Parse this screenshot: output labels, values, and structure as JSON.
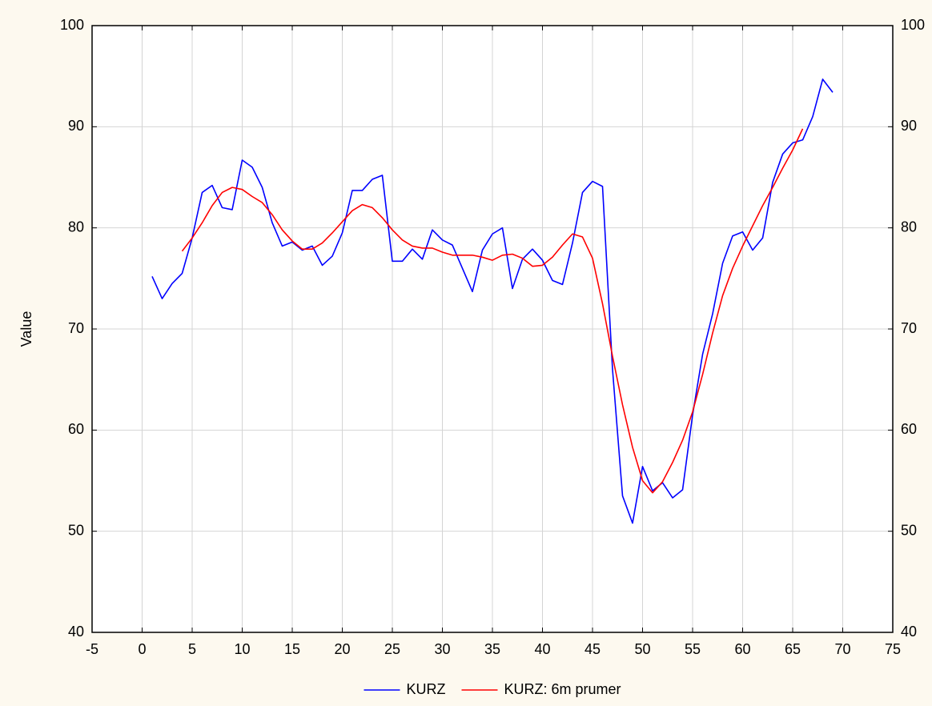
{
  "chart_data": {
    "type": "line",
    "ylabel": "Value",
    "x": [
      1,
      2,
      3,
      4,
      5,
      6,
      7,
      8,
      9,
      10,
      11,
      12,
      13,
      14,
      15,
      16,
      17,
      18,
      19,
      20,
      21,
      22,
      23,
      24,
      25,
      26,
      27,
      28,
      29,
      30,
      31,
      32,
      33,
      34,
      35,
      36,
      37,
      38,
      39,
      40,
      41,
      42,
      43,
      44,
      45,
      46,
      47,
      48,
      49,
      50,
      51,
      52,
      53,
      54,
      55,
      56,
      57,
      58,
      59,
      60,
      61,
      62,
      63,
      64,
      65,
      66,
      67,
      68,
      69
    ],
    "series": [
      {
        "name": "KURZ",
        "color": "#0000ff",
        "values": [
          75.2,
          73.0,
          74.5,
          75.5,
          79.0,
          83.5,
          84.2,
          82.0,
          81.8,
          86.7,
          86.0,
          84.0,
          80.5,
          78.2,
          78.6,
          77.8,
          78.2,
          76.3,
          77.2,
          79.5,
          83.7,
          83.7,
          84.8,
          85.2,
          76.7,
          76.7,
          77.9,
          76.9,
          79.8,
          78.8,
          78.3,
          76.0,
          73.7,
          77.8,
          79.4,
          80.0,
          74.0,
          76.9,
          77.9,
          76.8,
          74.8,
          74.4,
          78.5,
          83.5,
          84.6,
          84.1,
          66.0,
          53.5,
          50.8,
          56.4,
          54.0,
          54.8,
          53.3,
          54.1,
          61.5,
          67.5,
          71.5,
          76.5,
          79.2,
          79.6,
          77.8,
          79.0,
          84.5,
          87.3,
          88.4,
          88.7,
          91.0,
          94.7,
          93.4
        ]
      },
      {
        "name": "KURZ: 6m prumer",
        "color": "#ff0000",
        "values": [
          null,
          null,
          null,
          77.7,
          79.0,
          80.5,
          82.2,
          83.5,
          84.0,
          83.8,
          83.1,
          82.5,
          81.3,
          79.8,
          78.7,
          77.9,
          77.9,
          78.5,
          79.5,
          80.6,
          81.7,
          82.3,
          82.0,
          81.0,
          79.8,
          78.8,
          78.2,
          78.0,
          78.0,
          77.6,
          77.3,
          77.3,
          77.3,
          77.1,
          76.8,
          77.3,
          77.4,
          77.0,
          76.2,
          76.3,
          77.1,
          78.3,
          79.4,
          79.1,
          77.0,
          72.5,
          67.3,
          62.5,
          58.3,
          55.0,
          53.8,
          54.9,
          56.8,
          59.0,
          61.8,
          65.5,
          69.6,
          73.3,
          76.0,
          78.2,
          80.2,
          82.2,
          84.0,
          85.9,
          87.7,
          89.8,
          null,
          null,
          null
        ]
      }
    ],
    "xlim": [
      -5,
      75
    ],
    "xticks": [
      -5,
      0,
      5,
      10,
      15,
      20,
      25,
      30,
      35,
      40,
      45,
      50,
      55,
      60,
      65,
      70,
      75
    ],
    "ylim": [
      40,
      100
    ],
    "yticks": [
      40,
      50,
      60,
      70,
      80,
      90,
      100
    ],
    "y2lim": [
      40,
      100
    ],
    "y2ticks": [
      40,
      50,
      60,
      70,
      80,
      90,
      100
    ],
    "grid": true,
    "legend": "bottom"
  }
}
